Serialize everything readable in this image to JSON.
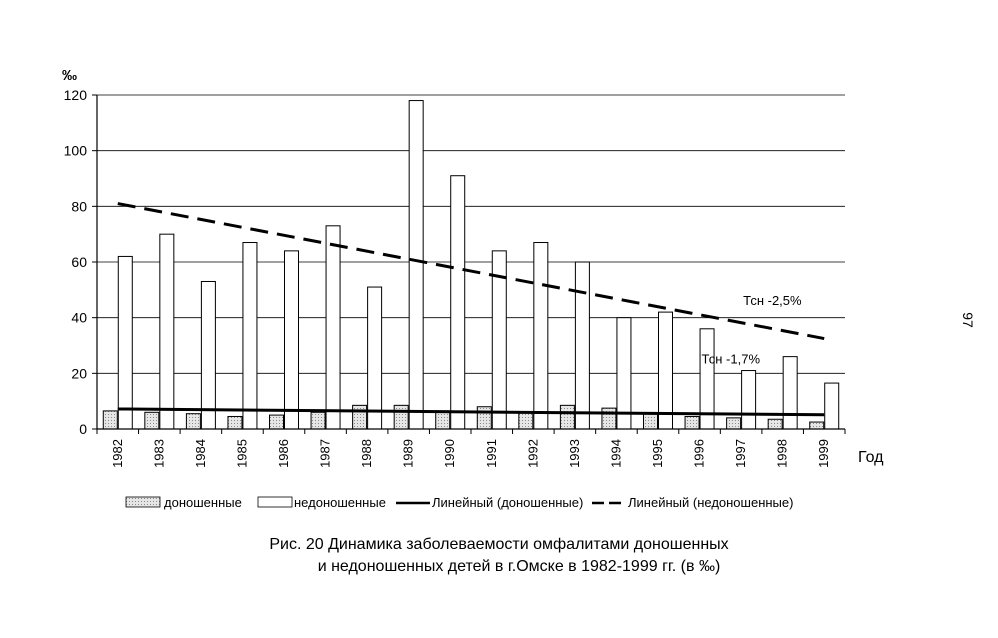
{
  "page_number": "97",
  "caption": {
    "line1": "Рис. 20 Динамика заболеваемости омфалитами доношенных",
    "line2": "и недоношенных детей в г.Омске в 1982-1999 гг. (в ‰)"
  },
  "chart_data": {
    "type": "bar",
    "title": "",
    "ylabel": "‰",
    "xlabel": "Год",
    "ylim": [
      0,
      120
    ],
    "yticks": [
      0,
      20,
      40,
      60,
      80,
      100,
      120
    ],
    "grid": true,
    "legend_position": "bottom",
    "categories": [
      "1982",
      "1983",
      "1984",
      "1985",
      "1986",
      "1987",
      "1988",
      "1989",
      "1990",
      "1991",
      "1992",
      "1993",
      "1994",
      "1995",
      "1996",
      "1997",
      "1998",
      "1999"
    ],
    "series": [
      {
        "name": "доношенные",
        "kind": "bar",
        "fill": "#d9d9d9",
        "values": [
          6.5,
          6,
          5.5,
          4.5,
          5,
          6,
          8.5,
          8.5,
          6.5,
          8,
          6,
          8.5,
          7.5,
          5.5,
          4.5,
          4,
          3.5,
          2.5
        ]
      },
      {
        "name": "недоношенные",
        "kind": "bar",
        "fill": "#ffffff",
        "values": [
          62,
          70,
          53,
          67,
          64,
          73,
          51,
          118,
          91,
          64,
          67,
          60,
          40,
          42,
          36,
          21,
          26,
          16.5
        ]
      },
      {
        "name": "Линейный (доношенные)",
        "kind": "trend",
        "style": "solid",
        "start": 7.2,
        "end": 5.1
      },
      {
        "name": "Линейный (недоношенные)",
        "kind": "trend",
        "style": "dashed",
        "start": 81,
        "end": 32.5
      }
    ],
    "annotations": [
      {
        "text": "Тсн -2,5%",
        "at_category": "1997",
        "y": 46
      },
      {
        "text": "Тсн -1,7%",
        "at_category": "1996",
        "y": 25
      }
    ]
  }
}
